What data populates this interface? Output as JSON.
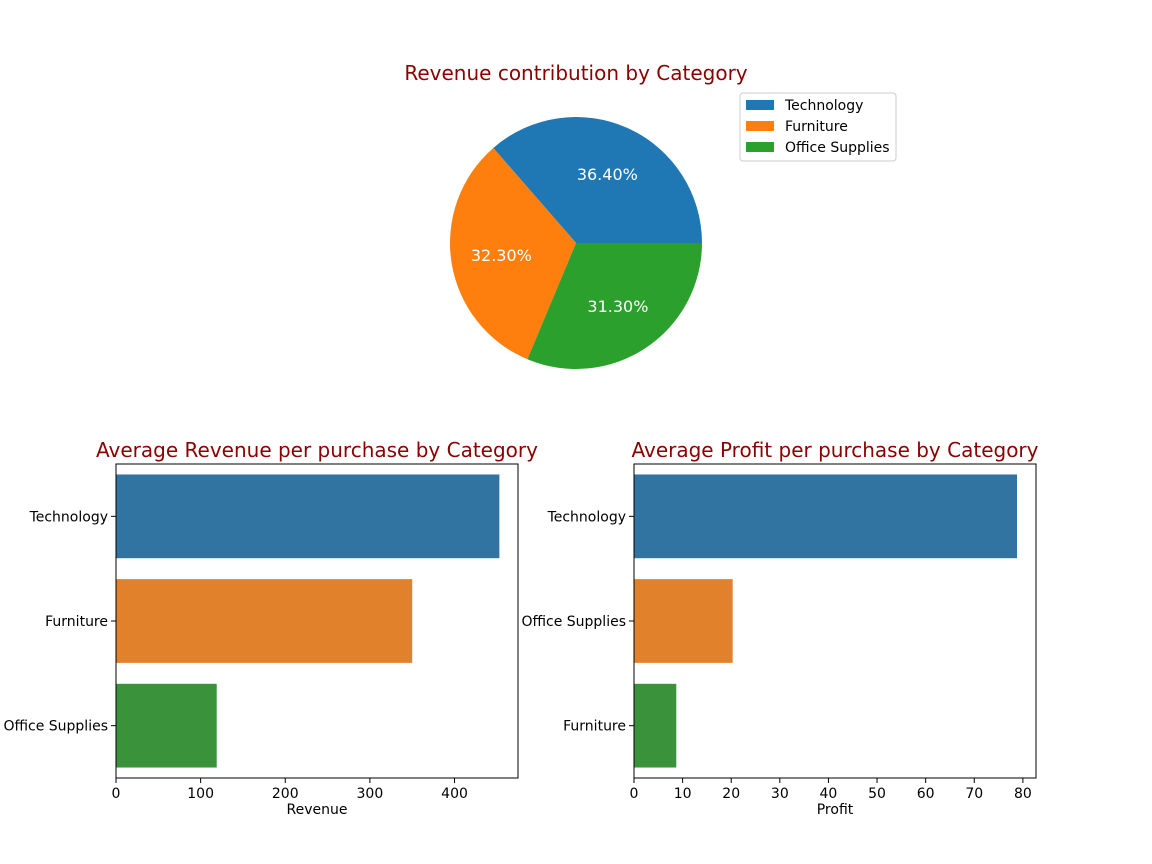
{
  "chart_data": [
    {
      "type": "pie",
      "title": "Revenue contribution by Category",
      "categories": [
        "Technology",
        "Furniture",
        "Office Supplies"
      ],
      "values": [
        36.4,
        32.3,
        31.3
      ],
      "labels": [
        "36.40%",
        "32.30%",
        "31.30%"
      ],
      "colors": [
        "#1f77b4",
        "#ff7f0e",
        "#2ca02c"
      ],
      "legend": "upper right"
    },
    {
      "type": "bar",
      "orientation": "horizontal",
      "title": "Average Revenue per purchase by Category",
      "categories": [
        "Technology",
        "Furniture",
        "Office Supplies"
      ],
      "values": [
        453,
        350,
        119
      ],
      "colors": [
        "#3274a1",
        "#e1812c",
        "#3a923a"
      ],
      "xlabel": "Revenue",
      "ylabel": "",
      "xlim": [
        0,
        475
      ],
      "xticks": [
        "0",
        "100",
        "200",
        "300",
        "400"
      ],
      "grid": false
    },
    {
      "type": "bar",
      "orientation": "horizontal",
      "title": "Average Profit per purchase by Category",
      "categories": [
        "Technology",
        "Office Supplies",
        "Furniture"
      ],
      "values": [
        78.8,
        20.3,
        8.7
      ],
      "colors": [
        "#3274a1",
        "#e1812c",
        "#3a923a"
      ],
      "xlabel": "Profit",
      "ylabel": "",
      "xlim": [
        0,
        82.7
      ],
      "xticks": [
        "0",
        "10",
        "20",
        "30",
        "40",
        "50",
        "60",
        "70",
        "80"
      ],
      "grid": false
    }
  ]
}
